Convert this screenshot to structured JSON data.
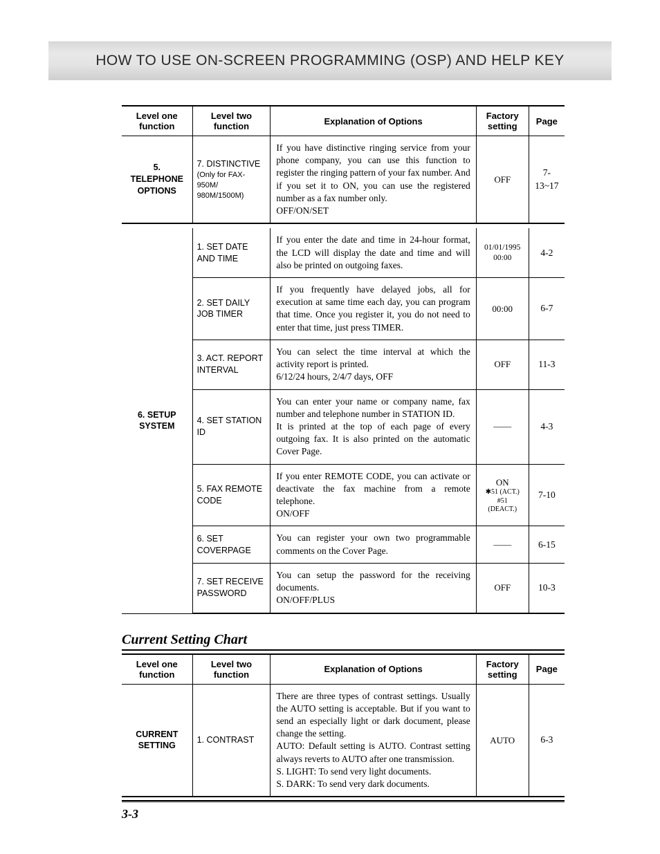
{
  "banner": "HOW TO USE ON-SCREEN PROGRAMMING (OSP) AND HELP KEY",
  "tableA": {
    "headers": {
      "c1": "Level one function",
      "c2": "Level two function",
      "c3": "Explanation of Options",
      "c4": "Factory setting",
      "c5": "Page"
    },
    "rows": [
      {
        "l1": "5. TELEPHONE OPTIONS",
        "l2": "7. DISTINCTIVE",
        "l2sub": "(Only for FAX-950M/ 980M/1500M)",
        "expl": "If you have distinctive ringing service from your phone company, you can use this function to register the ringing pattern of your fax number. And if you set it to ON, you can use the registered number as a fax number only.\nOFF/ON/SET",
        "fact": "OFF",
        "page": "7-13~17",
        "isLast": true
      },
      {
        "l1": "6. SETUP SYSTEM",
        "l1rowspan": 7,
        "l2": "1. SET DATE AND TIME",
        "expl": "If you enter the date and time in 24-hour format, the LCD will display the date and time and will also be printed on outgoing faxes.",
        "fact": "01/01/1995\n00:00",
        "factSmall": true,
        "page": "4-2"
      },
      {
        "l2": "2. SET DAILY JOB TIMER",
        "expl": "If you frequently have delayed jobs, all for execution at same time each day, you can program that time. Once you register it, you do not need to enter that time, just press TIMER.",
        "fact": "00:00",
        "page": "6-7"
      },
      {
        "l2": "3. ACT. REPORT INTERVAL",
        "expl": "You can select the time interval at which the activity report is printed.\n6/12/24 hours, 2/4/7 days, OFF",
        "fact": "OFF",
        "page": "11-3"
      },
      {
        "l2": "4. SET STATION ID",
        "expl": "You can enter your name or company name, fax number and telephone number in STATION ID.\nIt is printed at the top of each page of every outgoing fax. It is also printed on the automatic Cover Page.",
        "fact": "——",
        "page": "4-3"
      },
      {
        "l2": "5. FAX REMOTE CODE",
        "expl": "If you enter REMOTE CODE, you can activate or deactivate the fax machine from a remote telephone.\nON/OFF",
        "fact": "ON",
        "factLines": [
          "✱51 (ACT.)",
          "#51 (DEACT.)"
        ],
        "page": "7-10"
      },
      {
        "l2": "6. SET COVERPAGE",
        "expl": "You can register your own two programmable comments on the Cover Page.",
        "fact": "——",
        "page": "6-15"
      },
      {
        "l2": "7. SET RECEIVE PASSWORD",
        "expl": "You can setup the password for the receiving documents.\nON/OFF/PLUS",
        "fact": "OFF",
        "page": "10-3",
        "isLast": true
      }
    ]
  },
  "sectionTitle": "Current Setting Chart",
  "tableB": {
    "headers": {
      "c1": "Level one function",
      "c2": "Level two function",
      "c3": "Explanation of Options",
      "c4": "Factory setting",
      "c5": "Page"
    },
    "rows": [
      {
        "l1": "CURRENT SETTING",
        "l2": "1. CONTRAST",
        "expl": "There are three types of contrast settings. Usually the AUTO setting is acceptable. But if you want to send an especially light or dark document, please change the setting.\nAUTO: Default setting is AUTO. Contrast setting always reverts to AUTO after one transmission.\nS. LIGHT: To send very light documents.\nS. DARK: To send very dark documents.",
        "fact": "AUTO",
        "page": "6-3",
        "isLast": true
      }
    ]
  },
  "pageNumber": "3-3"
}
